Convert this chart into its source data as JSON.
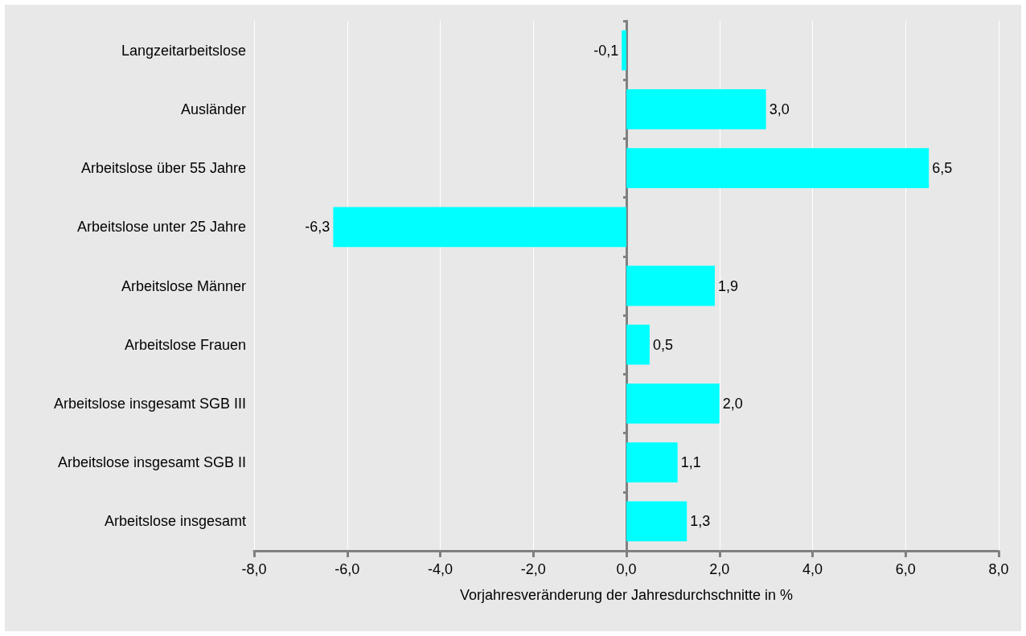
{
  "chart_data": {
    "type": "bar",
    "orientation": "horizontal",
    "xlabel": "Vorjahresveränderung der Jahresdurchschnitte in %",
    "categories": [
      "Langzeitarbeitslose",
      "Ausländer",
      "Arbeitslose über 55 Jahre",
      "Arbeitslose unter 25 Jahre",
      "Arbeitslose Männer",
      "Arbeitslose Frauen",
      "Arbeitslose insgesamt SGB III",
      "Arbeitslose insgesamt SGB II",
      "Arbeitslose insgesamt"
    ],
    "values": [
      -0.1,
      3.0,
      6.5,
      -6.3,
      1.9,
      0.5,
      2.0,
      1.1,
      1.3
    ],
    "value_labels": [
      "-0,1",
      "3,0",
      "6,5",
      "-6,3",
      "1,9",
      "0,5",
      "2,0",
      "1,1",
      "1,3"
    ],
    "color": "#00ffff",
    "xlim": [
      -8,
      8
    ],
    "xticks": [
      {
        "value": -8,
        "label": "-8,0"
      },
      {
        "value": -6,
        "label": "-6,0"
      },
      {
        "value": -4,
        "label": "-4,0"
      },
      {
        "value": -2,
        "label": "-2,0"
      },
      {
        "value": 0,
        "label": "0,0"
      },
      {
        "value": 2,
        "label": "2,0"
      },
      {
        "value": 4,
        "label": "4,0"
      },
      {
        "value": 6,
        "label": "6,0"
      },
      {
        "value": 8,
        "label": "8,0"
      }
    ],
    "grid": "x"
  }
}
